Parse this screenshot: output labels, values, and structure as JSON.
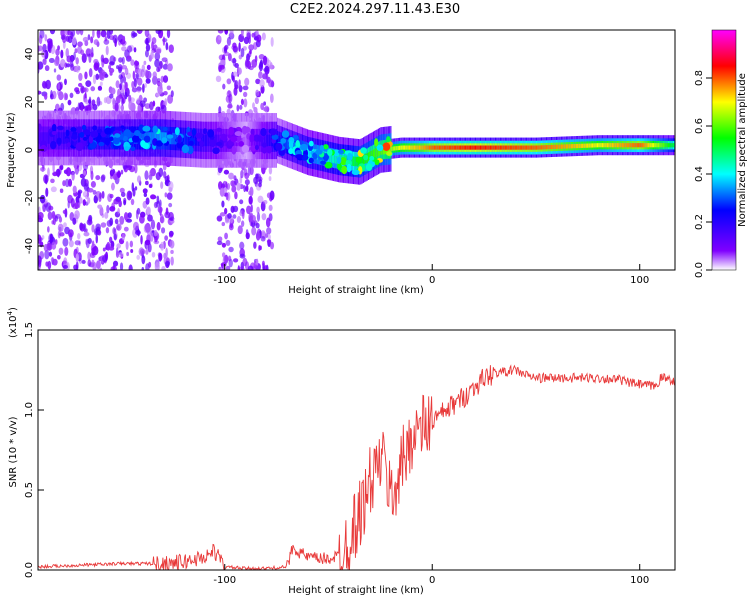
{
  "title": "C2E2.2024.297.11.43.E30",
  "chart_data": [
    {
      "type": "heatmap",
      "xlabel": "Height of straight line (km)",
      "ylabel": "Frequency (Hz)",
      "xlim": [
        -190,
        117
      ],
      "ylim": [
        -50,
        50
      ],
      "xticks": [
        -100,
        0,
        100
      ],
      "yticks": [
        -40,
        -20,
        0,
        20,
        40
      ],
      "xtick_labels": [
        "-100",
        "0",
        "100"
      ],
      "ytick_labels": [
        "-40",
        "-20",
        "0",
        "20",
        "40"
      ],
      "grid": false,
      "colorbar": {
        "label": "Normalized spectral amplitude",
        "range": [
          0,
          1
        ],
        "ticks": [
          "0.0",
          "0.2",
          "0.4",
          "0.6",
          "0.8"
        ],
        "colormap": [
          "#ff00ff",
          "#ff0000",
          "#ffff00",
          "#00ff00",
          "#00ffff",
          "#0000ff",
          "#8000ff",
          "#ffffff"
        ]
      },
      "ridge": {
        "height_km": [
          -190,
          -160,
          -130,
          -110,
          -90,
          -75,
          -60,
          -45,
          -35,
          -25,
          -15,
          -5,
          0,
          20,
          50,
          80,
          100,
          117
        ],
        "frequency_hz": [
          5,
          5,
          5,
          4,
          4,
          4,
          -1,
          -4,
          -5,
          0,
          1,
          1,
          1,
          1,
          1,
          2,
          2,
          2
        ],
        "amplitude": [
          0.15,
          0.25,
          0.35,
          0.2,
          0.05,
          0.25,
          0.4,
          0.45,
          0.55,
          0.6,
          0.7,
          0.75,
          0.8,
          0.85,
          0.8,
          0.7,
          0.8,
          0.5
        ]
      },
      "noisy_regions_km": [
        [
          -190,
          -125
        ],
        [
          -103,
          -77
        ]
      ]
    },
    {
      "type": "line",
      "xlabel": "Height of straight line (km)",
      "ylabel": "SNR (10 * v/v)",
      "y_scale_label": "(x10",
      "y_scale_exponent": "4",
      "xlim": [
        -190,
        117
      ],
      "ylim": [
        0,
        1.5
      ],
      "xticks": [
        -100,
        0,
        100
      ],
      "yticks": [
        0,
        0.5,
        1,
        1.5
      ],
      "xtick_labels": [
        "-100",
        "0",
        "100"
      ],
      "ytick_labels": [
        "0.0",
        "0.5",
        "1.0",
        "1.5"
      ],
      "color": "#e83a3a",
      "grid": false,
      "series": [
        {
          "x": [
            -190,
            -170,
            -150,
            -140,
            -130,
            -120,
            -110,
            -105,
            -100,
            -90,
            -80,
            -70,
            -67,
            -65,
            -60,
            -55,
            -50,
            -45,
            -40,
            -35,
            -32,
            -30,
            -27,
            -25,
            -22,
            -20,
            -17,
            -15,
            -12,
            -10,
            -5,
            0,
            5,
            10,
            15,
            20,
            25,
            30,
            35,
            40,
            45,
            50,
            60,
            70,
            80,
            90,
            95,
            100,
            105,
            108,
            110,
            113,
            117
          ],
          "y": [
            0.02,
            0.03,
            0.04,
            0.04,
            0.04,
            0.05,
            0.08,
            0.12,
            0.02,
            0.01,
            0.01,
            0.02,
            0.15,
            0.12,
            0.08,
            0.07,
            0.07,
            0.09,
            0.2,
            0.35,
            0.45,
            0.55,
            0.62,
            0.7,
            0.6,
            0.45,
            0.55,
            0.65,
            0.75,
            0.85,
            0.88,
            0.93,
            0.98,
            1.03,
            1.08,
            1.14,
            1.2,
            1.23,
            1.24,
            1.25,
            1.22,
            1.2,
            1.2,
            1.2,
            1.2,
            1.19,
            1.17,
            1.16,
            1.15,
            1.15,
            1.2,
            1.2,
            1.18
          ]
        }
      ]
    }
  ]
}
